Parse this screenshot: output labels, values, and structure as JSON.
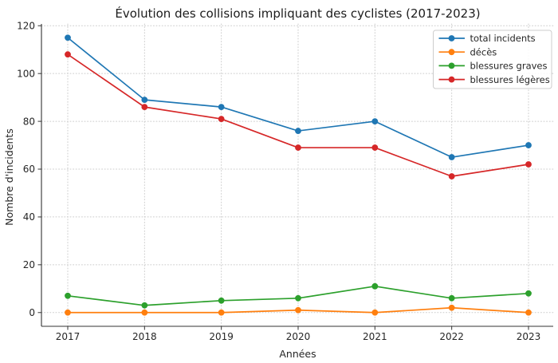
{
  "chart_data": {
    "type": "line",
    "title": "Évolution des collisions impliquant des cyclistes (2017-2023)",
    "xlabel": "Années",
    "ylabel": "Nombre d'incidents",
    "categories": [
      "2017",
      "2018",
      "2019",
      "2020",
      "2021",
      "2022",
      "2023"
    ],
    "series": [
      {
        "name": "total incidents",
        "color": "#1f77b4",
        "values": [
          115,
          89,
          86,
          76,
          80,
          65,
          70
        ]
      },
      {
        "name": "décès",
        "color": "#ff7f0e",
        "values": [
          0,
          0,
          0,
          1,
          0,
          2,
          0
        ]
      },
      {
        "name": "blessures graves",
        "color": "#2ca02c",
        "values": [
          7,
          3,
          5,
          6,
          11,
          6,
          8
        ]
      },
      {
        "name": "blessures légères",
        "color": "#d62728",
        "values": [
          108,
          86,
          81,
          69,
          69,
          57,
          62
        ]
      }
    ],
    "yticks": [
      0,
      20,
      40,
      60,
      80,
      100,
      120
    ],
    "ylim": [
      -5.75,
      120.75
    ],
    "grid": "dotted",
    "legend_position": "upper right",
    "marker": "circle",
    "background_color": "#ffffff"
  }
}
